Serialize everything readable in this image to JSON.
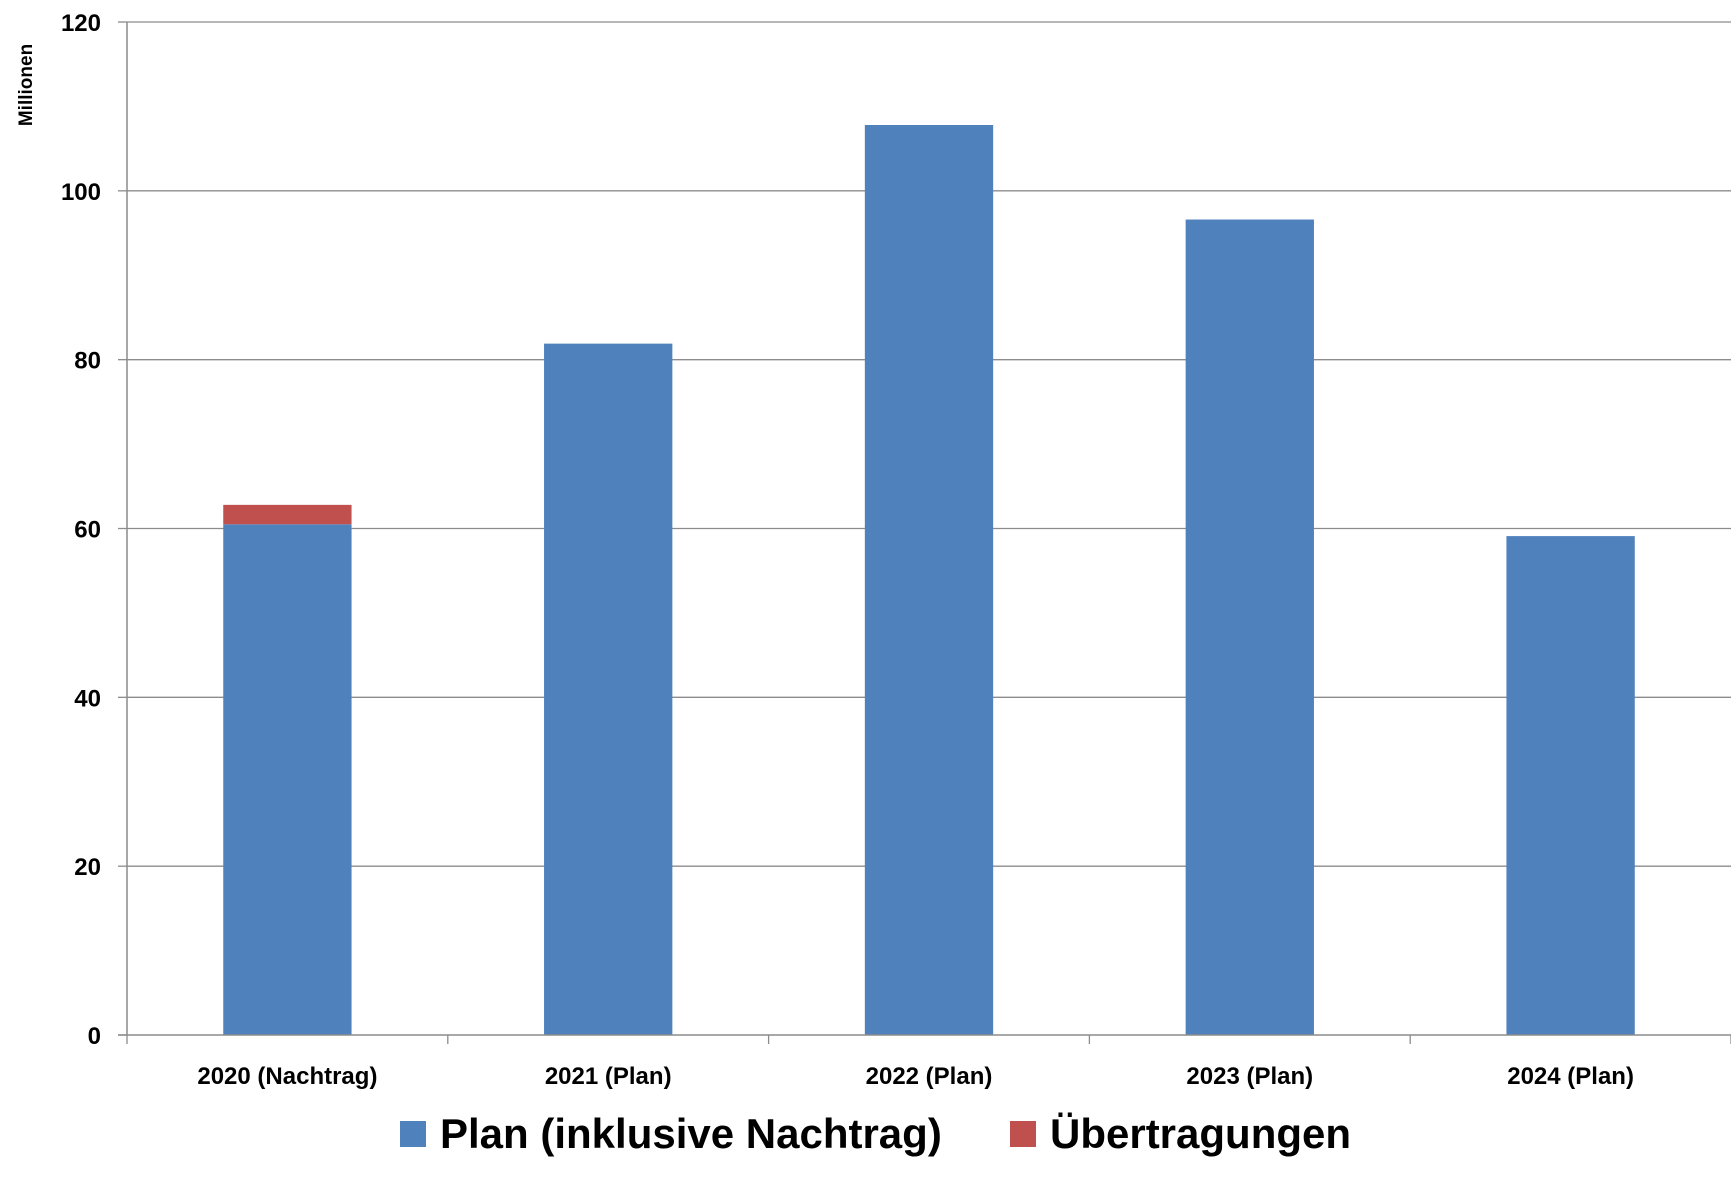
{
  "chart_data": {
    "type": "bar",
    "stacked": true,
    "categories": [
      "2020 (Nachtrag)",
      "2021 (Plan)",
      "2022 (Plan)",
      "2023 (Plan)",
      "2024 (Plan)"
    ],
    "series": [
      {
        "name": "Plan (inklusive Nachtrag)",
        "color": "#4F81BD",
        "values": [
          60.5,
          81.9,
          107.8,
          96.6,
          59.1
        ]
      },
      {
        "name": "Übertragungen",
        "color": "#C0504D",
        "values": [
          2.3,
          0,
          0,
          0,
          0
        ]
      }
    ],
    "ylabel": "Millionen",
    "ylim": [
      0,
      120
    ],
    "yticks": [
      "0",
      "20",
      "40",
      "60",
      "80",
      "100",
      "120"
    ],
    "grid": true,
    "legend_position": "bottom"
  }
}
